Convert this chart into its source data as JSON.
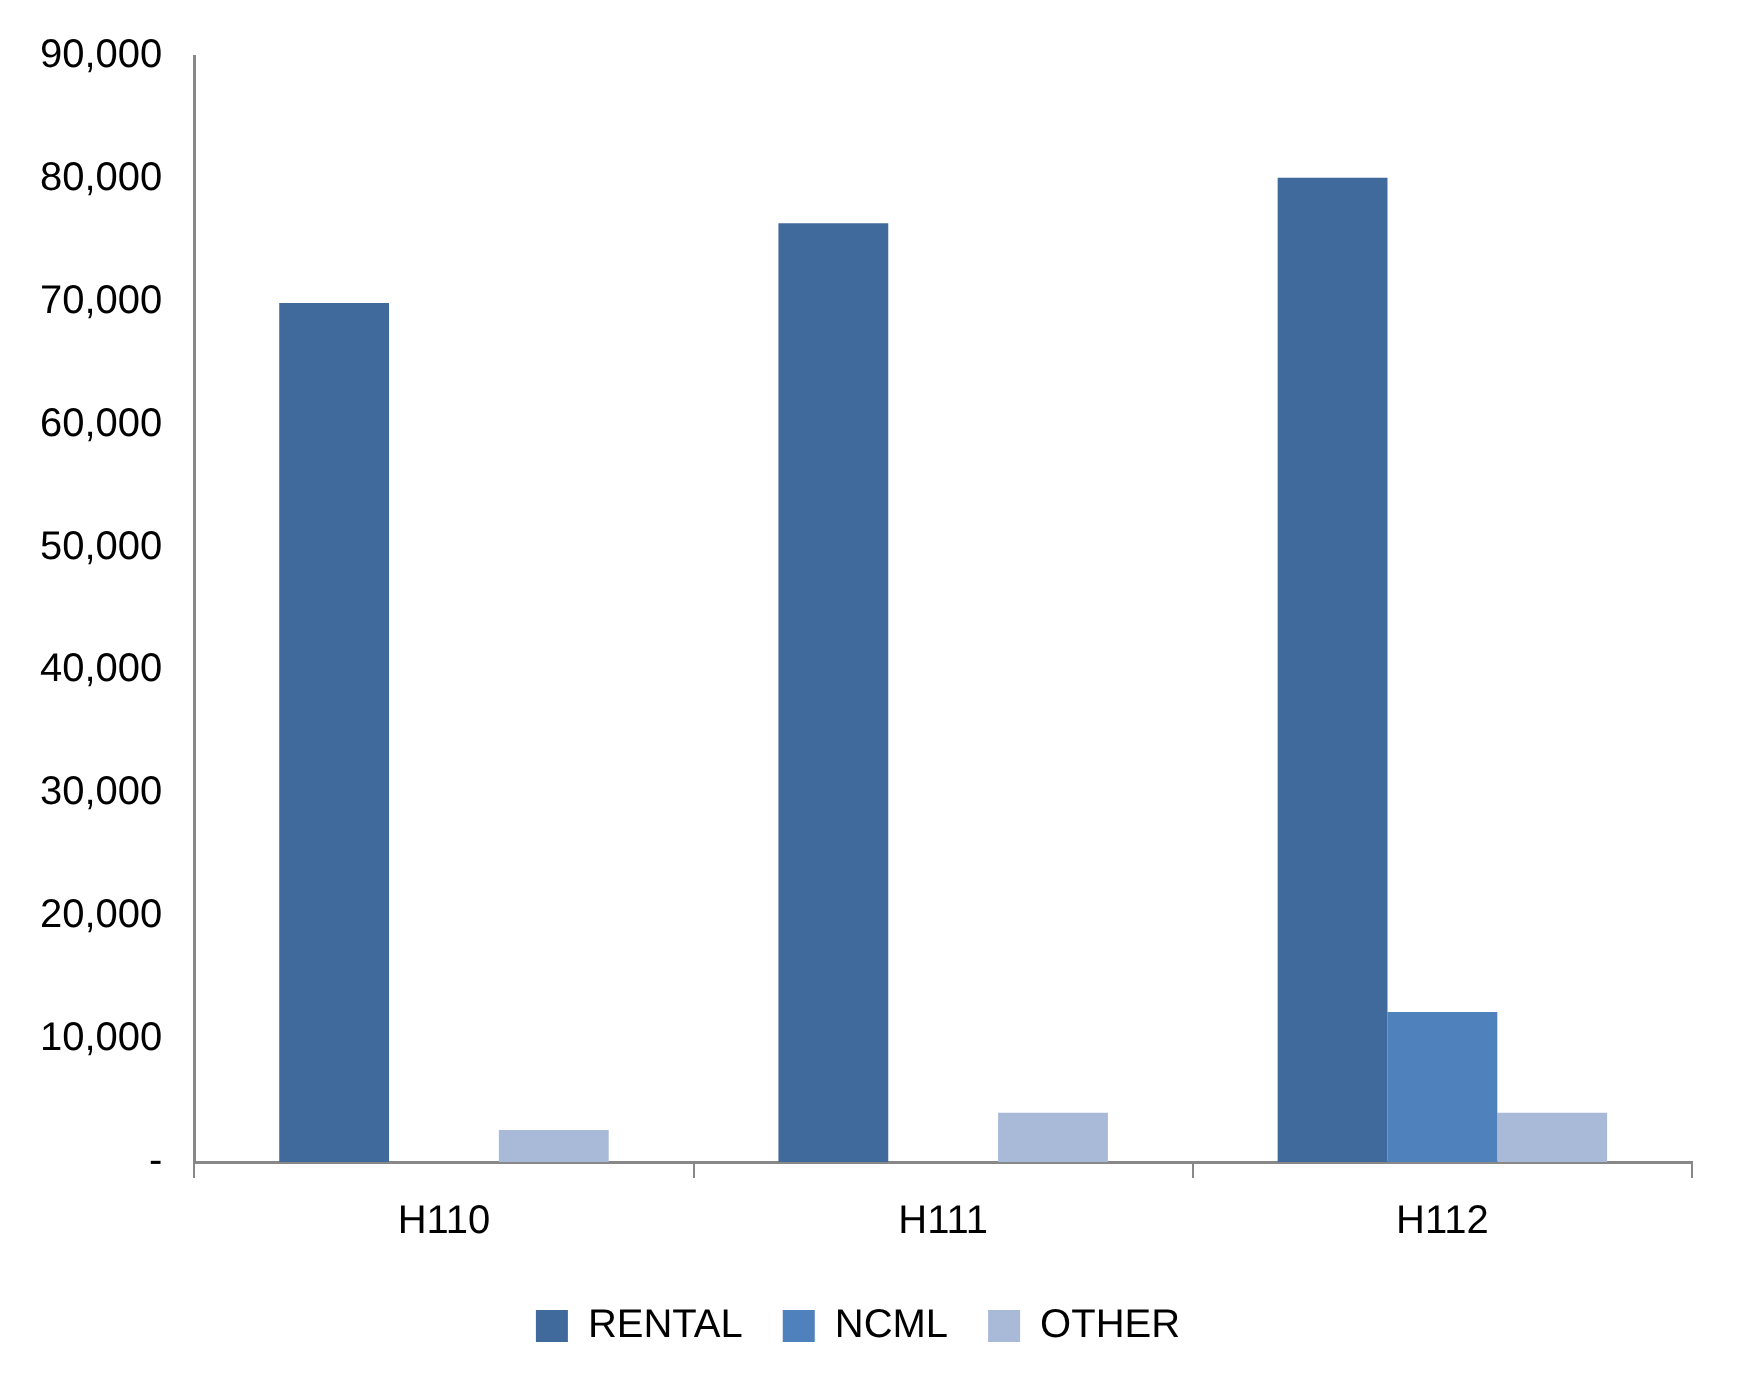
{
  "chart_data": {
    "type": "bar",
    "categories": [
      "H110",
      "H111",
      "H112"
    ],
    "series": [
      {
        "name": "RENTAL",
        "color": "#406a9c",
        "values": [
          69900,
          76400,
          80100
        ]
      },
      {
        "name": "NCML",
        "color": "#4f81bd",
        "values": [
          null,
          null,
          12200
        ]
      },
      {
        "name": "OTHER",
        "color": "#a9bad9",
        "values": [
          2600,
          4000,
          4000
        ]
      }
    ],
    "ylim": [
      0,
      90000
    ],
    "yticks": [
      {
        "value": 0,
        "label": "-"
      },
      {
        "value": 10000,
        "label": "10,000"
      },
      {
        "value": 20000,
        "label": "20,000"
      },
      {
        "value": 30000,
        "label": "30,000"
      },
      {
        "value": 40000,
        "label": "40,000"
      },
      {
        "value": 50000,
        "label": "50,000"
      },
      {
        "value": 60000,
        "label": "60,000"
      },
      {
        "value": 70000,
        "label": "70,000"
      },
      {
        "value": 80000,
        "label": "80,000"
      },
      {
        "value": 90000,
        "label": "90,000"
      }
    ],
    "grid": false,
    "legend": "bottom"
  }
}
